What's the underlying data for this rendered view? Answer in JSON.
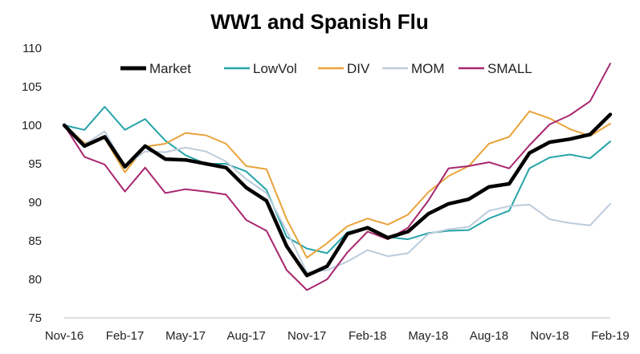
{
  "chart_data": {
    "type": "line",
    "title": "WW1 and Spanish Flu",
    "xlabel": "",
    "ylabel": "",
    "ylim": [
      75,
      110
    ],
    "yticks": [
      75,
      80,
      85,
      90,
      95,
      100,
      105,
      110
    ],
    "x": [
      "Nov-16",
      "Dec-16",
      "Jan-17",
      "Feb-17",
      "Mar-17",
      "Apr-17",
      "May-17",
      "Jun-17",
      "Jul-17",
      "Aug-17",
      "Sep-17",
      "Oct-17",
      "Nov-17",
      "Dec-17",
      "Jan-18",
      "Feb-18",
      "Mar-18",
      "Apr-18",
      "May-18",
      "Jun-18",
      "Jul-18",
      "Aug-18",
      "Sep-18",
      "Oct-18",
      "Nov-18",
      "Dec-18",
      "Jan-19",
      "Feb-19"
    ],
    "xtick_labels": [
      "Nov-16",
      "Feb-17",
      "May-17",
      "Aug-17",
      "Nov-17",
      "Feb-18",
      "May-18",
      "Aug-18",
      "Nov-18",
      "Feb-19"
    ],
    "grid": false,
    "legend": "top",
    "series": [
      {
        "name": "Market",
        "color": "#000000",
        "values": [
          100,
          97.3,
          98.5,
          94.6,
          97.3,
          95.6,
          95.5,
          95.0,
          94.5,
          91.9,
          90.2,
          84.3,
          80.5,
          81.7,
          85.9,
          86.7,
          85.4,
          86.2,
          88.5,
          89.8,
          90.4,
          92.0,
          92.4,
          96.4,
          97.8,
          98.2,
          98.8,
          101.4
        ]
      },
      {
        "name": "LowVol",
        "color": "#26A4A8",
        "values": [
          100,
          99.4,
          102.4,
          99.4,
          100.8,
          98.0,
          96.1,
          95.0,
          95.0,
          94.0,
          91.6,
          85.5,
          84.0,
          83.4,
          86.1,
          86.7,
          85.5,
          85.2,
          86.0,
          86.3,
          86.4,
          87.9,
          88.9,
          94.4,
          95.8,
          96.2,
          95.7,
          97.9
        ]
      },
      {
        "name": "DIV",
        "color": "#E9A33A",
        "values": [
          100,
          97.7,
          98.3,
          93.9,
          97.2,
          97.6,
          99.0,
          98.7,
          97.6,
          94.7,
          94.3,
          87.8,
          82.8,
          84.7,
          86.9,
          87.9,
          87.1,
          88.4,
          91.3,
          93.4,
          94.7,
          97.6,
          98.5,
          101.8,
          100.9,
          99.5,
          98.6,
          100.2
        ]
      },
      {
        "name": "MOM",
        "color": "#BCCCDC",
        "values": [
          100,
          97.5,
          99.2,
          94.7,
          96.6,
          96.5,
          97.1,
          96.6,
          95.3,
          93.0,
          91.2,
          86.3,
          80.9,
          81.2,
          82.3,
          83.8,
          83.0,
          83.4,
          85.9,
          86.5,
          86.8,
          88.9,
          89.5,
          89.7,
          87.8,
          87.3,
          87.0,
          89.8
        ]
      },
      {
        "name": "SMALL",
        "color": "#A8276F",
        "values": [
          100,
          95.9,
          94.9,
          91.4,
          94.5,
          91.2,
          91.7,
          91.4,
          91.0,
          87.7,
          86.3,
          81.2,
          78.6,
          80.0,
          83.5,
          86.2,
          85.2,
          86.7,
          90.2,
          94.4,
          94.7,
          95.2,
          94.4,
          97.4,
          100.1,
          101.3,
          103.1,
          108.0
        ]
      }
    ]
  }
}
